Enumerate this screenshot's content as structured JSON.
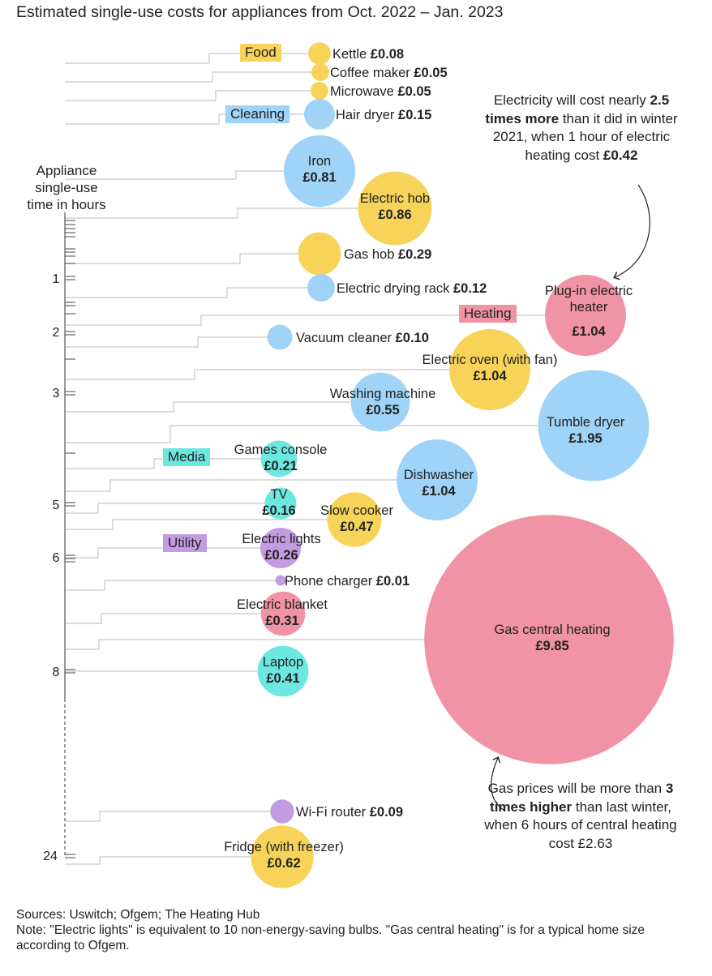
{
  "title": "Estimated single-use costs for appliances from Oct. 2022 – Jan. 2023",
  "ylabel_lines": [
    "Appliance",
    "single-use",
    "time in hours"
  ],
  "notes": {
    "electricity": {
      "before": "Electricity will cost nearly ",
      "bold": "2.5 times more",
      "after": " than it did in winter 2021, when 1 hour of electric heating cost ",
      "bold2": "£0.42"
    },
    "gas": {
      "before": "Gas prices will be more than ",
      "bold": "3 times higher",
      "after": " than last winter, when 6 hours of central heating cost £2.63"
    }
  },
  "footer": {
    "sources": "Sources: Uswitch; Ofgem; The Heating Hub",
    "note": "Note: \"Electric lights\" is equivalent to 10 non-energy-saving bulbs. \"Gas central heating\" is for a typical home size according to Ofgem."
  },
  "colors": {
    "Food": "#f7d35a",
    "Cleaning": "#9fd3f7",
    "Heating": "#ef93a5",
    "Media": "#6de8e0",
    "Utility": "#c39be0"
  },
  "chart_data": {
    "type": "bubble",
    "title": "Estimated single-use costs for appliances from Oct. 2022 – Jan. 2023",
    "ylabel": "Appliance single-use time in hours",
    "yticks": [
      "1",
      "2",
      "3",
      "5",
      "6",
      "8",
      "24"
    ],
    "categories": [
      "Food",
      "Cleaning",
      "Heating",
      "Media",
      "Utility"
    ],
    "currency": "£",
    "points": [
      {
        "name": "Kettle",
        "category": "Food",
        "cost": 0.08,
        "hours": 0.05
      },
      {
        "name": "Coffee maker",
        "category": "Food",
        "cost": 0.05,
        "hours": 0.1
      },
      {
        "name": "Microwave",
        "category": "Food",
        "cost": 0.05,
        "hours": 0.2
      },
      {
        "name": "Hair dryer",
        "category": "Cleaning",
        "cost": 0.15,
        "hours": 0.25
      },
      {
        "name": "Iron",
        "category": "Cleaning",
        "cost": 0.81,
        "hours": 0.5
      },
      {
        "name": "Electric hob",
        "category": "Food",
        "cost": 0.86,
        "hours": 0.5
      },
      {
        "name": "Gas hob",
        "category": "Food",
        "cost": 0.29,
        "hours": 0.5
      },
      {
        "name": "Electric drying rack",
        "category": "Cleaning",
        "cost": 0.12,
        "hours": 1
      },
      {
        "name": "Plug-in electric heater",
        "category": "Heating",
        "cost": 1.04,
        "hours": 1
      },
      {
        "name": "Vacuum cleaner",
        "category": "Cleaning",
        "cost": 0.1,
        "hours": 1.5
      },
      {
        "name": "Electric oven (with fan)",
        "category": "Food",
        "cost": 1.04,
        "hours": 1.5
      },
      {
        "name": "Washing machine",
        "category": "Cleaning",
        "cost": 0.55,
        "hours": 2
      },
      {
        "name": "Tumble dryer",
        "category": "Cleaning",
        "cost": 1.95,
        "hours": 2.5
      },
      {
        "name": "Games console",
        "category": "Media",
        "cost": 0.21,
        "hours": 3
      },
      {
        "name": "Dishwasher",
        "category": "Cleaning",
        "cost": 1.04,
        "hours": 3
      },
      {
        "name": "TV",
        "category": "Media",
        "cost": 0.16,
        "hours": 4
      },
      {
        "name": "Slow cooker",
        "category": "Food",
        "cost": 0.47,
        "hours": 4
      },
      {
        "name": "Electric lights",
        "category": "Utility",
        "cost": 0.26,
        "hours": 5
      },
      {
        "name": "Phone charger",
        "category": "Utility",
        "cost": 0.01,
        "hours": 6
      },
      {
        "name": "Electric blanket",
        "category": "Heating",
        "cost": 0.31,
        "hours": 6
      },
      {
        "name": "Gas central heating",
        "category": "Heating",
        "cost": 9.85,
        "hours": 6
      },
      {
        "name": "Laptop",
        "category": "Media",
        "cost": 0.41,
        "hours": 8
      },
      {
        "name": "Wi-Fi router",
        "category": "Utility",
        "cost": 0.09,
        "hours": 24
      },
      {
        "name": "Fridge (with freezer)",
        "category": "Food",
        "cost": 0.62,
        "hours": 24
      }
    ]
  }
}
